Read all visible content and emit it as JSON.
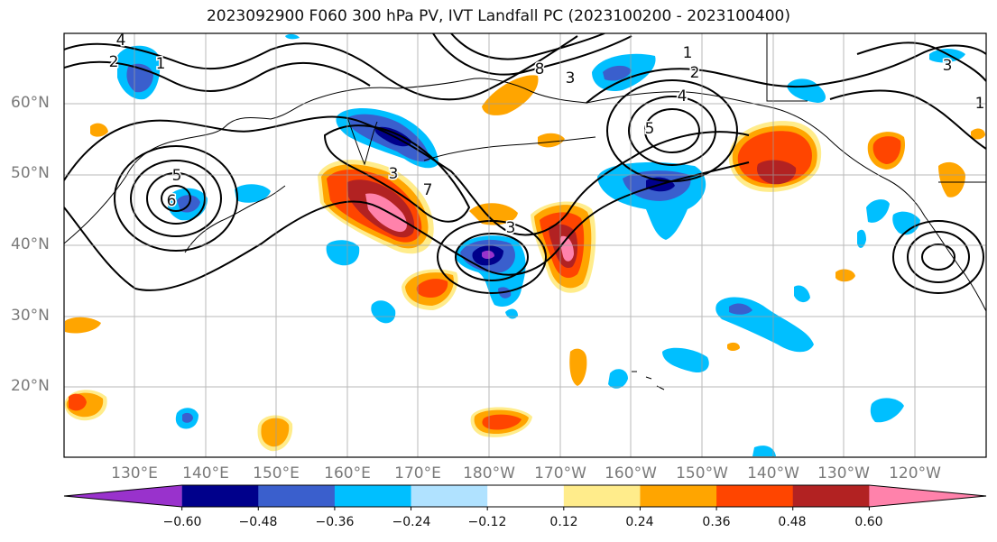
{
  "title": "2023092900 F060 300 hPa PV, IVT Landfall PC (2023100200 - 2023100400)",
  "lat_labels": [
    "60°N",
    "50°N",
    "40°N",
    "30°N",
    "20°N"
  ],
  "lon_labels": [
    "130°E",
    "140°E",
    "150°E",
    "160°E",
    "170°E",
    "180°W",
    "170°W",
    "160°W",
    "150°W",
    "140°W",
    "130°W",
    "120°W"
  ],
  "colorbar": {
    "tick_labels": [
      "−0.60",
      "−0.48",
      "−0.36",
      "−0.24",
      "−0.12",
      "0.12",
      "0.24",
      "0.36",
      "0.48",
      "0.60"
    ],
    "ticks": [
      -0.6,
      -0.48,
      -0.36,
      -0.24,
      -0.12,
      0.12,
      0.24,
      0.36,
      0.48,
      0.6
    ],
    "colors": [
      "#9932cc",
      "#00008b",
      "#3a5fcd",
      "#00bfff",
      "#b0e2ff",
      "#ffffff",
      "#ffec8b",
      "#ffa500",
      "#ff4500",
      "#b22222",
      "#ff82ab"
    ],
    "extend": "both"
  },
  "contour_labels": [
    "4",
    "2",
    "1",
    "5",
    "6",
    "8",
    "3",
    "1",
    "2",
    "4",
    "5",
    "3",
    "7",
    "3",
    "3",
    "1"
  ],
  "colors": {
    "negative_strong": "#00008b",
    "negative_mid": "#3a5fcd",
    "negative_weak": "#00bfff",
    "positive_weak": "#ffa500",
    "positive_mid": "#ff4500",
    "positive_strong": "#b22222",
    "positive_max": "#ff82ab"
  }
}
